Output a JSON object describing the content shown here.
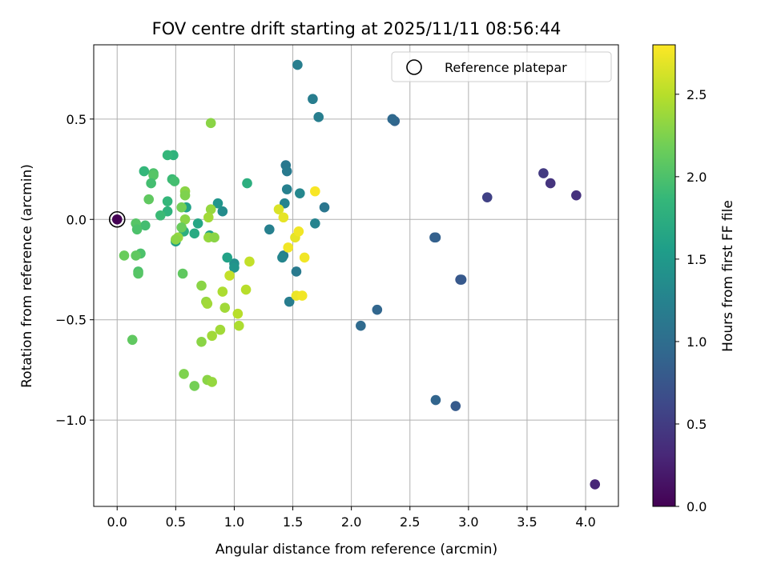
{
  "chart_data": {
    "type": "scatter",
    "title": "FOV centre drift starting at 2025/11/11 08:56:44",
    "xlabel": "Angular distance from reference (arcmin)",
    "ylabel": "Rotation from reference (arcmin)",
    "xlim": [
      -0.2,
      4.28
    ],
    "ylim": [
      -1.43,
      0.87
    ],
    "xticks": [
      0.0,
      0.5,
      1.0,
      1.5,
      2.0,
      2.5,
      3.0,
      3.5,
      4.0
    ],
    "xtick_labels": [
      "0.0",
      "0.5",
      "1.0",
      "1.5",
      "2.0",
      "2.5",
      "3.0",
      "3.5",
      "4.0"
    ],
    "yticks": [
      -1.0,
      -0.5,
      0.0,
      0.5
    ],
    "ytick_labels": [
      "−1.0",
      "−0.5",
      "0.0",
      "0.5"
    ],
    "grid": true,
    "legend": {
      "entries": [
        "Reference platepar"
      ],
      "placement": "top-right"
    },
    "reference_point": {
      "x": 0.0,
      "y": 0.0,
      "label": "Reference platepar"
    },
    "colorbar": {
      "label": "Hours from first FF file",
      "range": [
        0.0,
        2.8
      ],
      "ticks": [
        0.0,
        0.5,
        1.0,
        1.5,
        2.0,
        2.5
      ],
      "tick_labels": [
        "0.0",
        "0.5",
        "1.0",
        "1.5",
        "2.0",
        "2.5"
      ],
      "colormap": "viridis"
    },
    "points": [
      {
        "x": 4.08,
        "y": -1.32,
        "t": 0.3
      },
      {
        "x": 3.92,
        "y": 0.12,
        "t": 0.4
      },
      {
        "x": 3.7,
        "y": 0.18,
        "t": 0.42
      },
      {
        "x": 3.64,
        "y": 0.23,
        "t": 0.48
      },
      {
        "x": 3.16,
        "y": 0.11,
        "t": 0.55
      },
      {
        "x": 2.93,
        "y": -0.3,
        "t": 0.75
      },
      {
        "x": 2.94,
        "y": -0.3,
        "t": 0.78
      },
      {
        "x": 2.89,
        "y": -0.93,
        "t": 0.8
      },
      {
        "x": 2.71,
        "y": -0.09,
        "t": 0.85
      },
      {
        "x": 2.72,
        "y": -0.09,
        "t": 0.86
      },
      {
        "x": 2.72,
        "y": -0.9,
        "t": 0.9
      },
      {
        "x": 2.37,
        "y": 0.49,
        "t": 0.9
      },
      {
        "x": 2.35,
        "y": 0.5,
        "t": 0.95
      },
      {
        "x": 2.22,
        "y": -0.45,
        "t": 0.92
      },
      {
        "x": 2.08,
        "y": -0.53,
        "t": 0.97
      },
      {
        "x": 1.77,
        "y": 0.06,
        "t": 1.1
      },
      {
        "x": 1.72,
        "y": 0.51,
        "t": 1.2
      },
      {
        "x": 1.67,
        "y": 0.6,
        "t": 1.18
      },
      {
        "x": 1.69,
        "y": -0.02,
        "t": 1.25
      },
      {
        "x": 1.54,
        "y": 0.77,
        "t": 1.2
      },
      {
        "x": 1.56,
        "y": 0.13,
        "t": 1.3
      },
      {
        "x": 1.53,
        "y": -0.26,
        "t": 1.15
      },
      {
        "x": 1.47,
        "y": -0.41,
        "t": 1.18
      },
      {
        "x": 1.44,
        "y": 0.27,
        "t": 1.12
      },
      {
        "x": 1.45,
        "y": 0.24,
        "t": 1.15
      },
      {
        "x": 1.45,
        "y": 0.15,
        "t": 1.22
      },
      {
        "x": 1.43,
        "y": 0.08,
        "t": 1.25
      },
      {
        "x": 1.42,
        "y": -0.18,
        "t": 1.2
      },
      {
        "x": 1.41,
        "y": -0.19,
        "t": 1.28
      },
      {
        "x": 1.3,
        "y": -0.05,
        "t": 1.22
      },
      {
        "x": 1.11,
        "y": 0.18,
        "t": 1.75
      },
      {
        "x": 1.0,
        "y": -0.22,
        "t": 1.4
      },
      {
        "x": 1.0,
        "y": -0.24,
        "t": 1.45
      },
      {
        "x": 0.94,
        "y": -0.19,
        "t": 1.6
      },
      {
        "x": 0.9,
        "y": 0.04,
        "t": 1.35
      },
      {
        "x": 0.86,
        "y": 0.08,
        "t": 1.45
      },
      {
        "x": 0.79,
        "y": -0.08,
        "t": 1.55
      },
      {
        "x": 0.69,
        "y": -0.02,
        "t": 1.65
      },
      {
        "x": 0.66,
        "y": -0.07,
        "t": 1.7
      },
      {
        "x": 0.59,
        "y": 0.06,
        "t": 1.6
      },
      {
        "x": 0.57,
        "y": -0.06,
        "t": 1.75
      },
      {
        "x": 0.5,
        "y": -0.11,
        "t": 1.55
      },
      {
        "x": 0.48,
        "y": 0.32,
        "t": 1.8
      },
      {
        "x": 0.43,
        "y": 0.32,
        "t": 1.85
      },
      {
        "x": 0.47,
        "y": 0.2,
        "t": 1.9
      },
      {
        "x": 0.49,
        "y": 0.19,
        "t": 1.95
      },
      {
        "x": 0.43,
        "y": 0.09,
        "t": 1.85
      },
      {
        "x": 0.43,
        "y": 0.04,
        "t": 1.8
      },
      {
        "x": 0.37,
        "y": 0.02,
        "t": 1.9
      },
      {
        "x": 0.31,
        "y": 0.23,
        "t": 2.0
      },
      {
        "x": 0.31,
        "y": 0.22,
        "t": 2.05
      },
      {
        "x": 0.29,
        "y": 0.18,
        "t": 1.95
      },
      {
        "x": 0.23,
        "y": 0.24,
        "t": 1.85
      },
      {
        "x": 0.27,
        "y": 0.1,
        "t": 2.1
      },
      {
        "x": 0.24,
        "y": -0.03,
        "t": 1.95
      },
      {
        "x": 0.16,
        "y": -0.02,
        "t": 2.05
      },
      {
        "x": 0.17,
        "y": -0.05,
        "t": 2.0
      },
      {
        "x": 0.2,
        "y": -0.17,
        "t": 2.0
      },
      {
        "x": 0.16,
        "y": -0.18,
        "t": 2.1
      },
      {
        "x": 0.06,
        "y": -0.18,
        "t": 2.15
      },
      {
        "x": 0.18,
        "y": -0.26,
        "t": 2.0
      },
      {
        "x": 0.18,
        "y": -0.27,
        "t": 2.05
      },
      {
        "x": 0.13,
        "y": -0.6,
        "t": 2.1
      },
      {
        "x": 0.8,
        "y": 0.48,
        "t": 2.3
      },
      {
        "x": 0.58,
        "y": 0.14,
        "t": 2.3
      },
      {
        "x": 0.58,
        "y": 0.12,
        "t": 2.25
      },
      {
        "x": 0.55,
        "y": 0.06,
        "t": 2.2
      },
      {
        "x": 0.58,
        "y": 0.0,
        "t": 2.3
      },
      {
        "x": 0.55,
        "y": -0.04,
        "t": 2.15
      },
      {
        "x": 0.52,
        "y": -0.09,
        "t": 2.35
      },
      {
        "x": 0.5,
        "y": -0.1,
        "t": 2.3
      },
      {
        "x": 0.56,
        "y": -0.27,
        "t": 2.1
      },
      {
        "x": 0.8,
        "y": 0.05,
        "t": 2.35
      },
      {
        "x": 0.78,
        "y": 0.01,
        "t": 2.4
      },
      {
        "x": 0.78,
        "y": -0.09,
        "t": 2.35
      },
      {
        "x": 0.83,
        "y": -0.09,
        "t": 2.3
      },
      {
        "x": 0.57,
        "y": -0.77,
        "t": 2.25
      },
      {
        "x": 0.66,
        "y": -0.83,
        "t": 2.2
      },
      {
        "x": 0.77,
        "y": -0.8,
        "t": 2.3
      },
      {
        "x": 0.81,
        "y": -0.81,
        "t": 2.35
      },
      {
        "x": 0.72,
        "y": -0.61,
        "t": 2.3
      },
      {
        "x": 0.81,
        "y": -0.58,
        "t": 2.4
      },
      {
        "x": 0.88,
        "y": -0.55,
        "t": 2.4
      },
      {
        "x": 0.72,
        "y": -0.33,
        "t": 2.3
      },
      {
        "x": 0.76,
        "y": -0.41,
        "t": 2.35
      },
      {
        "x": 0.77,
        "y": -0.42,
        "t": 2.4
      },
      {
        "x": 0.9,
        "y": -0.36,
        "t": 2.45
      },
      {
        "x": 0.92,
        "y": -0.44,
        "t": 2.4
      },
      {
        "x": 0.96,
        "y": -0.28,
        "t": 2.55
      },
      {
        "x": 1.03,
        "y": -0.47,
        "t": 2.5
      },
      {
        "x": 1.04,
        "y": -0.53,
        "t": 2.45
      },
      {
        "x": 1.1,
        "y": -0.35,
        "t": 2.5
      },
      {
        "x": 1.13,
        "y": -0.21,
        "t": 2.55
      },
      {
        "x": 1.38,
        "y": 0.05,
        "t": 2.65
      },
      {
        "x": 1.42,
        "y": 0.01,
        "t": 2.7
      },
      {
        "x": 1.46,
        "y": -0.14,
        "t": 2.75
      },
      {
        "x": 1.52,
        "y": -0.09,
        "t": 2.7
      },
      {
        "x": 1.55,
        "y": -0.06,
        "t": 2.75
      },
      {
        "x": 1.6,
        "y": -0.19,
        "t": 2.75
      },
      {
        "x": 1.53,
        "y": -0.38,
        "t": 2.72
      },
      {
        "x": 1.58,
        "y": -0.38,
        "t": 2.75
      },
      {
        "x": 1.69,
        "y": 0.14,
        "t": 2.78
      }
    ]
  }
}
